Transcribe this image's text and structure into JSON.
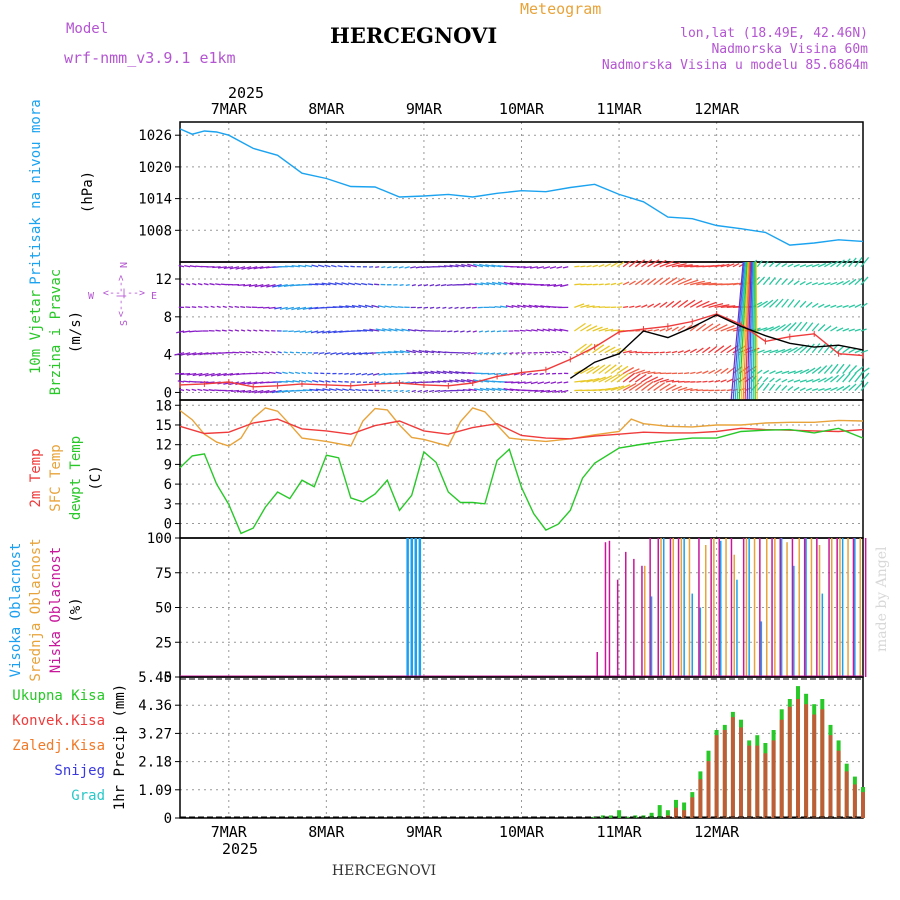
{
  "header": {
    "model_label": "Model",
    "model_value": "wrf-nmm_v3.9.1 e1km",
    "title": "HERCEGNOVI",
    "meteogram_label": "Meteogram",
    "coords": "lon,lat (18.49E, 42.46N)",
    "altitude": "Nadmorska Visina 60m",
    "model_altitude": "Nadmorska Visina u modelu 85.6864m",
    "footer_title": "HERCEGNOVI",
    "credit": "made by Angel"
  },
  "colors": {
    "pressure": "#1ba3f0",
    "t2m": "#ef3b3b",
    "sfc": "#e8a33a",
    "dewpt": "#28c828",
    "high_cloud": "#1b9ff0",
    "mid_cloud": "#e8a33a",
    "low_cloud": "#c8179b",
    "total_precip": "#28c828",
    "conv_precip": "#ef3b3b",
    "frozen_precip": "#f07a28",
    "snow": "#3a3ae0",
    "hail": "#2ac8c8",
    "magenta_text": "#b455d2"
  },
  "time_axis": {
    "year": "2025",
    "days": [
      "7MAR",
      "8MAR",
      "9MAR",
      "10MAR",
      "11MAR",
      "12MAR"
    ]
  },
  "chart_data": [
    {
      "type": "line",
      "panel": "pressure",
      "title": "",
      "ylabel": [
        "Pritisak na nivou mora",
        "(hPa)"
      ],
      "y_ticks": [
        "1026",
        "1020",
        "1014",
        "1008"
      ],
      "ylim": [
        1002,
        1028.5
      ],
      "xlim_hours": [
        -12,
        156
      ],
      "series": [
        {
          "name": "",
          "color": "#1ba3f0",
          "x": [
            -12,
            -9,
            -6,
            -3,
            0,
            6,
            12,
            18,
            24,
            30,
            36,
            42,
            48,
            54,
            60,
            66,
            72,
            78,
            84,
            90,
            96,
            102,
            108,
            114,
            120,
            126,
            132,
            138,
            144,
            150,
            156
          ],
          "y": [
            1027.2,
            1026.2,
            1026.8,
            1026.6,
            1026.0,
            1023.5,
            1022.2,
            1018.8,
            1017.8,
            1016.3,
            1016.2,
            1014.3,
            1014.5,
            1014.8,
            1014.3,
            1015.0,
            1015.5,
            1015.3,
            1016.1,
            1016.7,
            1014.8,
            1013.4,
            1010.5,
            1010.2,
            1008.9,
            1008.3,
            1007.6,
            1005.2,
            1005.6,
            1006.2,
            1005.9
          ]
        }
      ]
    },
    {
      "type": "line",
      "panel": "wind",
      "ylabel": [
        "10m Vjetar",
        "Brzina i Pravac",
        "(m/s)"
      ],
      "compass": [
        "N",
        "E",
        "S",
        "W",
        "<--|-->",
        "<--|-->"
      ],
      "y_ticks": [
        "0",
        "4",
        "8",
        "12"
      ],
      "ylim": [
        -0.8,
        13.8
      ],
      "xlim_hours": [
        -12,
        156
      ],
      "series": [
        {
          "name": "",
          "color": "#000000",
          "x": [
            84,
            90,
            96,
            102,
            108,
            114,
            120,
            126,
            132,
            138,
            144,
            150,
            156
          ],
          "y": [
            1.5,
            3.2,
            4.1,
            6.5,
            5.8,
            6.9,
            8.2,
            7.0,
            6.0,
            5.2,
            4.8,
            5.0,
            4.5
          ]
        },
        {
          "name": "",
          "color": "#ef3b3b",
          "x": [
            -12,
            -6,
            0,
            6,
            12,
            18,
            24,
            30,
            36,
            42,
            48,
            54,
            60,
            66,
            72,
            78,
            84,
            90,
            96,
            102,
            108,
            114,
            120,
            126,
            132,
            138,
            144,
            150,
            156
          ],
          "y": [
            0.8,
            0.9,
            1.1,
            0.6,
            0.7,
            0.9,
            0.8,
            0.7,
            0.9,
            1.0,
            0.8,
            0.7,
            1.0,
            1.7,
            2.1,
            2.4,
            3.5,
            4.8,
            6.4,
            6.7,
            7.0,
            7.5,
            8.3,
            7.2,
            5.4,
            5.9,
            6.2,
            4.1,
            3.9
          ]
        }
      ],
      "wind_arrow_rows": [
        0.2,
        1.1,
        2.0,
        4.2,
        6.5,
        9.0,
        11.4,
        13.3
      ]
    },
    {
      "type": "line",
      "panel": "temperature",
      "ylabel": [
        "2m Temp",
        "SFC Temp",
        "dewpt Temp",
        "(C)"
      ],
      "y_ticks": [
        "0",
        "3",
        "6",
        "9",
        "12",
        "15",
        "18"
      ],
      "ylim": [
        -2.2,
        18.8
      ],
      "xlim_hours": [
        -12,
        156
      ],
      "series": [
        {
          "name": "2m Temp",
          "color": "#ef3b3b",
          "x": [
            -12,
            -6,
            0,
            6,
            12,
            18,
            24,
            30,
            36,
            42,
            48,
            54,
            60,
            66,
            72,
            78,
            84,
            90,
            96,
            102,
            108,
            114,
            120,
            126,
            132,
            138,
            144,
            150,
            156
          ],
          "y": [
            14.8,
            13.7,
            13.9,
            15.3,
            15.9,
            14.4,
            14.1,
            13.6,
            14.9,
            15.6,
            14.1,
            13.6,
            14.6,
            15.2,
            13.4,
            13.0,
            12.9,
            13.3,
            13.6,
            13.9,
            13.8,
            13.8,
            14.0,
            14.5,
            14.3,
            14.2,
            14.1,
            14.0,
            14.3
          ]
        },
        {
          "name": "SFC Temp",
          "color": "#e8a33a",
          "x": [
            -12,
            -9,
            -6,
            -3,
            0,
            3,
            6,
            9,
            12,
            15,
            18,
            24,
            30,
            33,
            36,
            39,
            42,
            45,
            48,
            54,
            57,
            60,
            63,
            66,
            69,
            72,
            78,
            84,
            90,
            96,
            99,
            102,
            108,
            114,
            120,
            126,
            132,
            138,
            144,
            150,
            156
          ],
          "y": [
            17.2,
            15.8,
            13.6,
            12.4,
            11.8,
            13.0,
            16.0,
            17.6,
            17.1,
            15.1,
            13.0,
            12.5,
            11.8,
            15.6,
            17.5,
            17.3,
            15.0,
            13.1,
            12.8,
            11.8,
            15.5,
            17.6,
            17.0,
            15.0,
            13.0,
            12.8,
            12.5,
            12.9,
            13.5,
            14.0,
            15.9,
            15.2,
            14.8,
            14.7,
            15.0,
            15.0,
            15.3,
            15.4,
            15.4,
            15.7,
            15.6
          ]
        },
        {
          "name": "dewpt Temp",
          "color": "#28c828",
          "x": [
            -12,
            -9,
            -6,
            -3,
            0,
            3,
            6,
            9,
            12,
            15,
            18,
            21,
            24,
            27,
            30,
            33,
            36,
            39,
            42,
            45,
            48,
            51,
            54,
            57,
            60,
            63,
            66,
            69,
            72,
            75,
            78,
            81,
            84,
            87,
            90,
            96,
            102,
            108,
            114,
            120,
            126,
            132,
            138,
            144,
            150,
            156
          ],
          "y": [
            8.5,
            10.3,
            10.6,
            6.0,
            2.9,
            -1.5,
            -0.7,
            2.5,
            4.8,
            3.8,
            6.6,
            5.6,
            10.4,
            10.0,
            3.9,
            3.3,
            4.5,
            6.6,
            2.0,
            4.3,
            10.9,
            9.3,
            4.8,
            3.2,
            3.2,
            3.0,
            9.6,
            11.3,
            5.5,
            1.5,
            -1.0,
            -0.1,
            2.0,
            6.9,
            9.2,
            11.5,
            12.1,
            12.6,
            13.0,
            13.0,
            14.0,
            14.2,
            14.3,
            13.8,
            14.5,
            13.0
          ]
        }
      ]
    },
    {
      "type": "bar",
      "panel": "clouds",
      "ylabel": [
        "Visoka Oblacnost",
        "Srednja Oblacnost",
        "Niska Oblacnost",
        "(%)"
      ],
      "y_ticks": [
        "0",
        "25",
        "50",
        "75",
        "100"
      ],
      "ylim": [
        0,
        100
      ],
      "xlim_hours": [
        -12,
        156
      ],
      "series": [
        {
          "name": "Visoka Oblacnost",
          "color": "#1b9ff0",
          "x": [
            44,
            45,
            46,
            47,
            104,
            107,
            112,
            114,
            116,
            121,
            125,
            128,
            131,
            136,
            139,
            142,
            146,
            151,
            154
          ],
          "y": [
            100,
            100,
            100,
            100,
            58,
            100,
            100,
            60,
            50,
            98,
            70,
            100,
            40,
            100,
            80,
            100,
            60,
            100,
            100
          ]
        },
        {
          "name": "Srednja Oblacnost",
          "color": "#e8a33a",
          "x": [
            102,
            106,
            109,
            111,
            113,
            117,
            119,
            122,
            124,
            127,
            129,
            132,
            134,
            137,
            140,
            143,
            145,
            148,
            150,
            152,
            155
          ],
          "y": [
            80,
            100,
            100,
            100,
            100,
            95,
            100,
            100,
            88,
            100,
            100,
            100,
            100,
            97,
            100,
            100,
            95,
            100,
            100,
            100,
            100
          ]
        },
        {
          "name": "Niska Oblacnost",
          "color": "#c8179b",
          "x": [
            90,
            92,
            93,
            95,
            97,
            99,
            101,
            103,
            105,
            108,
            110,
            115,
            118,
            120,
            123,
            126,
            130,
            133,
            135,
            138,
            141,
            144,
            147,
            149,
            153,
            156
          ],
          "y": [
            18,
            97,
            98,
            70,
            90,
            85,
            80,
            100,
            100,
            100,
            100,
            100,
            100,
            100,
            100,
            100,
            100,
            100,
            100,
            100,
            100,
            100,
            100,
            100,
            100,
            100
          ]
        }
      ]
    },
    {
      "type": "bar",
      "panel": "precipitation",
      "ylabel": [
        "1hr Precip (mm)"
      ],
      "legend": [
        "Ukupna Kisa",
        "Konvek.Kisa",
        "Zaledj.Kisa",
        "Snijeg",
        "Grad"
      ],
      "y_ticks": [
        "0",
        "1.09",
        "2.18",
        "3.27",
        "4.36",
        "5.45"
      ],
      "ylim": [
        0,
        5.45
      ],
      "xlim_hours": [
        -12,
        156
      ],
      "series": [
        {
          "name": "Ukupna Kisa",
          "color": "#28c828",
          "x": [
            90,
            92,
            94,
            96,
            98,
            100,
            102,
            104,
            106,
            108,
            110,
            112,
            114,
            116,
            118,
            120,
            122,
            124,
            126,
            128,
            130,
            132,
            134,
            136,
            138,
            140,
            142,
            144,
            146,
            148,
            150,
            152,
            154,
            156
          ],
          "y": [
            0.05,
            0.1,
            0.1,
            0.3,
            0.05,
            0.1,
            0.1,
            0.2,
            0.5,
            0.3,
            0.7,
            0.6,
            1.0,
            1.8,
            2.6,
            3.4,
            3.6,
            4.1,
            3.8,
            3.0,
            3.2,
            2.9,
            3.4,
            4.2,
            4.6,
            5.1,
            4.8,
            4.4,
            4.6,
            3.6,
            3.0,
            2.1,
            1.6,
            1.2
          ]
        },
        {
          "name": "Konvek.Kisa",
          "color": "#ef3b3b",
          "x": [
            108,
            110,
            112,
            114,
            116,
            118,
            120,
            122,
            124,
            126,
            128,
            130,
            132,
            134,
            136,
            138,
            140,
            142,
            144,
            146,
            148,
            150,
            152,
            154,
            156
          ],
          "y": [
            0.1,
            0.4,
            0.3,
            0.8,
            1.5,
            2.2,
            3.2,
            3.4,
            3.9,
            3.5,
            2.8,
            2.8,
            2.5,
            3.0,
            3.8,
            4.3,
            4.6,
            4.4,
            4.0,
            4.2,
            3.2,
            2.6,
            1.8,
            1.3,
            1.0
          ]
        },
        {
          "name": "Zaledj.Kisa",
          "color": "#f07a28",
          "x": [],
          "y": []
        },
        {
          "name": "Snijeg",
          "color": "#3a3ae0",
          "x": [],
          "y": []
        },
        {
          "name": "Grad",
          "color": "#2ac8c8",
          "x": [],
          "y": []
        }
      ]
    }
  ]
}
